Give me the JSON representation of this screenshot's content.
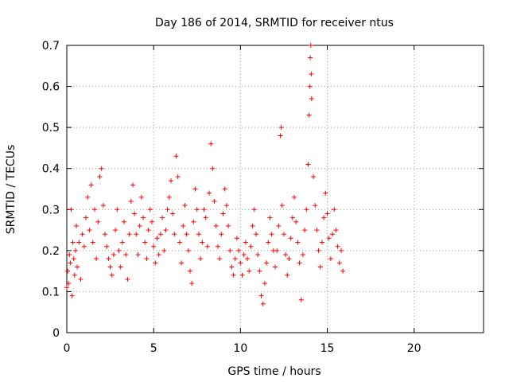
{
  "chart_data": {
    "type": "scatter",
    "title": "Day 186 of 2014, SRMTID for receiver ntus",
    "xlabel": "GPS time / hours",
    "ylabel": "SRMTID / TECUs",
    "xlim": [
      0,
      24
    ],
    "ylim": [
      0,
      0.7
    ],
    "xticks": [
      0,
      5,
      10,
      15,
      20
    ],
    "yticks": [
      0,
      0.1,
      0.2,
      0.3,
      0.4,
      0.5,
      0.6,
      0.7
    ],
    "grid": true,
    "marker": "+",
    "series": [
      {
        "name": "SRMTID",
        "color": "#ff0000",
        "points": [
          [
            0.0,
            0.11
          ],
          [
            0.05,
            0.15
          ],
          [
            0.1,
            0.12
          ],
          [
            0.15,
            0.19
          ],
          [
            0.2,
            0.17
          ],
          [
            0.25,
            0.3
          ],
          [
            0.3,
            0.09
          ],
          [
            0.35,
            0.22
          ],
          [
            0.4,
            0.18
          ],
          [
            0.45,
            0.14
          ],
          [
            0.5,
            0.2
          ],
          [
            0.55,
            0.26
          ],
          [
            0.6,
            0.16
          ],
          [
            0.7,
            0.22
          ],
          [
            0.8,
            0.13
          ],
          [
            0.9,
            0.24
          ],
          [
            1.0,
            0.21
          ],
          [
            1.1,
            0.28
          ],
          [
            1.2,
            0.33
          ],
          [
            1.3,
            0.25
          ],
          [
            1.4,
            0.36
          ],
          [
            1.5,
            0.22
          ],
          [
            1.6,
            0.3
          ],
          [
            1.7,
            0.18
          ],
          [
            1.8,
            0.27
          ],
          [
            1.9,
            0.38
          ],
          [
            2.0,
            0.4
          ],
          [
            2.1,
            0.31
          ],
          [
            2.2,
            0.24
          ],
          [
            2.3,
            0.21
          ],
          [
            2.4,
            0.18
          ],
          [
            2.5,
            0.16
          ],
          [
            2.6,
            0.14
          ],
          [
            2.7,
            0.19
          ],
          [
            2.8,
            0.25
          ],
          [
            2.9,
            0.3
          ],
          [
            3.0,
            0.2
          ],
          [
            3.1,
            0.16
          ],
          [
            3.2,
            0.22
          ],
          [
            3.3,
            0.27
          ],
          [
            3.4,
            0.19
          ],
          [
            3.5,
            0.13
          ],
          [
            3.6,
            0.24
          ],
          [
            3.7,
            0.32
          ],
          [
            3.8,
            0.36
          ],
          [
            3.9,
            0.29
          ],
          [
            4.0,
            0.24
          ],
          [
            4.1,
            0.19
          ],
          [
            4.2,
            0.26
          ],
          [
            4.3,
            0.33
          ],
          [
            4.4,
            0.28
          ],
          [
            4.5,
            0.22
          ],
          [
            4.6,
            0.18
          ],
          [
            4.7,
            0.25
          ],
          [
            4.8,
            0.3
          ],
          [
            4.9,
            0.27
          ],
          [
            5.0,
            0.21
          ],
          [
            5.1,
            0.17
          ],
          [
            5.2,
            0.23
          ],
          [
            5.3,
            0.19
          ],
          [
            5.4,
            0.24
          ],
          [
            5.5,
            0.28
          ],
          [
            5.6,
            0.2
          ],
          [
            5.7,
            0.25
          ],
          [
            5.8,
            0.3
          ],
          [
            5.9,
            0.33
          ],
          [
            6.0,
            0.37
          ],
          [
            6.1,
            0.29
          ],
          [
            6.2,
            0.24
          ],
          [
            6.3,
            0.43
          ],
          [
            6.4,
            0.38
          ],
          [
            6.5,
            0.22
          ],
          [
            6.6,
            0.17
          ],
          [
            6.7,
            0.26
          ],
          [
            6.8,
            0.31
          ],
          [
            6.9,
            0.24
          ],
          [
            7.0,
            0.2
          ],
          [
            7.1,
            0.15
          ],
          [
            7.2,
            0.12
          ],
          [
            7.3,
            0.27
          ],
          [
            7.4,
            0.35
          ],
          [
            7.5,
            0.3
          ],
          [
            7.6,
            0.24
          ],
          [
            7.7,
            0.18
          ],
          [
            7.8,
            0.22
          ],
          [
            7.9,
            0.3
          ],
          [
            8.0,
            0.28
          ],
          [
            8.1,
            0.21
          ],
          [
            8.2,
            0.34
          ],
          [
            8.3,
            0.46
          ],
          [
            8.4,
            0.4
          ],
          [
            8.5,
            0.32
          ],
          [
            8.6,
            0.26
          ],
          [
            8.7,
            0.21
          ],
          [
            8.8,
            0.18
          ],
          [
            8.9,
            0.24
          ],
          [
            9.0,
            0.29
          ],
          [
            9.1,
            0.35
          ],
          [
            9.2,
            0.31
          ],
          [
            9.3,
            0.26
          ],
          [
            9.4,
            0.2
          ],
          [
            9.5,
            0.16
          ],
          [
            9.6,
            0.14
          ],
          [
            9.7,
            0.18
          ],
          [
            9.8,
            0.23
          ],
          [
            9.9,
            0.2
          ],
          [
            10.0,
            0.17
          ],
          [
            10.1,
            0.14
          ],
          [
            10.2,
            0.19
          ],
          [
            10.3,
            0.22
          ],
          [
            10.4,
            0.18
          ],
          [
            10.5,
            0.15
          ],
          [
            10.6,
            0.21
          ],
          [
            10.7,
            0.26
          ],
          [
            10.8,
            0.3
          ],
          [
            10.9,
            0.24
          ],
          [
            11.0,
            0.19
          ],
          [
            11.1,
            0.15
          ],
          [
            11.2,
            0.09
          ],
          [
            11.3,
            0.07
          ],
          [
            11.4,
            0.12
          ],
          [
            11.5,
            0.17
          ],
          [
            11.6,
            0.22
          ],
          [
            11.7,
            0.28
          ],
          [
            11.8,
            0.24
          ],
          [
            11.9,
            0.2
          ],
          [
            12.0,
            0.16
          ],
          [
            12.1,
            0.2
          ],
          [
            12.2,
            0.26
          ],
          [
            12.3,
            0.48
          ],
          [
            12.35,
            0.5
          ],
          [
            12.4,
            0.31
          ],
          [
            12.5,
            0.24
          ],
          [
            12.6,
            0.19
          ],
          [
            12.7,
            0.14
          ],
          [
            12.8,
            0.18
          ],
          [
            12.9,
            0.23
          ],
          [
            13.0,
            0.28
          ],
          [
            13.1,
            0.33
          ],
          [
            13.2,
            0.27
          ],
          [
            13.3,
            0.22
          ],
          [
            13.4,
            0.17
          ],
          [
            13.5,
            0.08
          ],
          [
            13.6,
            0.19
          ],
          [
            13.7,
            0.25
          ],
          [
            13.8,
            0.3
          ],
          [
            13.9,
            0.41
          ],
          [
            13.95,
            0.53
          ],
          [
            14.0,
            0.6
          ],
          [
            14.02,
            0.67
          ],
          [
            14.05,
            0.7
          ],
          [
            14.08,
            0.63
          ],
          [
            14.1,
            0.57
          ],
          [
            14.2,
            0.38
          ],
          [
            14.3,
            0.31
          ],
          [
            14.4,
            0.25
          ],
          [
            14.5,
            0.2
          ],
          [
            14.6,
            0.16
          ],
          [
            14.7,
            0.22
          ],
          [
            14.8,
            0.28
          ],
          [
            14.9,
            0.34
          ],
          [
            15.0,
            0.29
          ],
          [
            15.1,
            0.23
          ],
          [
            15.2,
            0.18
          ],
          [
            15.3,
            0.24
          ],
          [
            15.4,
            0.3
          ],
          [
            15.5,
            0.25
          ],
          [
            15.6,
            0.21
          ],
          [
            15.7,
            0.17
          ],
          [
            15.8,
            0.2
          ],
          [
            15.9,
            0.15
          ]
        ]
      }
    ]
  }
}
